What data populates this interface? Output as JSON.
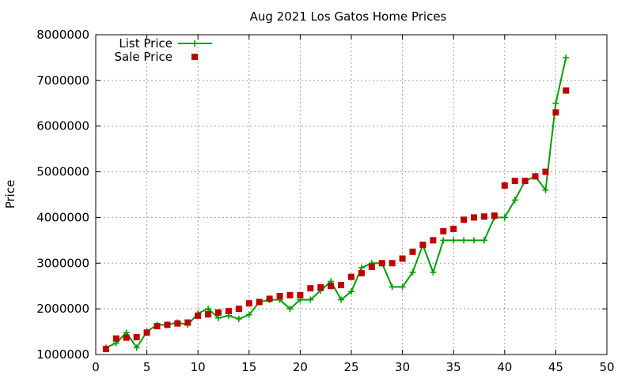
{
  "chart_data": {
    "type": "line",
    "title": "Aug 2021 Los Gatos Home Prices",
    "xlabel": "",
    "ylabel": "Price",
    "xlim": [
      0,
      50
    ],
    "ylim": [
      1000000,
      8000000
    ],
    "xticks": [
      0,
      5,
      10,
      15,
      20,
      25,
      30,
      35,
      40,
      45,
      50
    ],
    "yticks": [
      1000000,
      2000000,
      3000000,
      4000000,
      5000000,
      6000000,
      7000000,
      8000000
    ],
    "xtick_labels": [
      "0",
      "5",
      "10",
      "15",
      "20",
      "25",
      "30",
      "35",
      "40",
      "45",
      "50"
    ],
    "ytick_labels": [
      "1000000",
      "2000000",
      "3000000",
      "4000000",
      "5000000",
      "6000000",
      "7000000",
      "8000000"
    ],
    "grid": true,
    "legend_position": "top-left",
    "series": [
      {
        "name": "List Price",
        "style": "line-plus",
        "color": "#00a000",
        "x": [
          1,
          2,
          3,
          4,
          5,
          6,
          7,
          8,
          9,
          10,
          11,
          12,
          13,
          14,
          15,
          16,
          17,
          18,
          19,
          20,
          21,
          22,
          23,
          24,
          25,
          26,
          27,
          28,
          29,
          30,
          31,
          32,
          33,
          34,
          35,
          36,
          37,
          38,
          39,
          40,
          41,
          42,
          43,
          44,
          45,
          46
        ],
        "y": [
          1150000,
          1250000,
          1480000,
          1150000,
          1500000,
          1650000,
          1650000,
          1700000,
          1650000,
          1900000,
          2000000,
          1800000,
          1850000,
          1780000,
          1870000,
          2150000,
          2200000,
          2200000,
          2000000,
          2200000,
          2200000,
          2400000,
          2600000,
          2200000,
          2380000,
          2900000,
          3000000,
          3000000,
          2480000,
          2480000,
          2800000,
          3400000,
          2800000,
          3500000,
          3500000,
          3500000,
          3500000,
          3500000,
          4000000,
          4000000,
          4380000,
          4800000,
          4900000,
          4600000,
          6500000,
          7500000
        ]
      },
      {
        "name": "Sale Price",
        "style": "square",
        "color": "#c00000",
        "x": [
          1,
          2,
          3,
          4,
          5,
          6,
          7,
          8,
          9,
          10,
          11,
          12,
          13,
          14,
          15,
          16,
          17,
          18,
          19,
          20,
          21,
          22,
          23,
          24,
          25,
          26,
          27,
          28,
          29,
          30,
          31,
          32,
          33,
          34,
          35,
          36,
          37,
          38,
          39,
          40,
          41,
          42,
          43,
          44,
          45,
          46
        ],
        "y": [
          1120000,
          1350000,
          1370000,
          1380000,
          1480000,
          1620000,
          1650000,
          1680000,
          1700000,
          1850000,
          1880000,
          1920000,
          1950000,
          2000000,
          2120000,
          2150000,
          2220000,
          2280000,
          2300000,
          2300000,
          2450000,
          2470000,
          2500000,
          2520000,
          2700000,
          2780000,
          2920000,
          3000000,
          3000000,
          3100000,
          3250000,
          3400000,
          3500000,
          3700000,
          3750000,
          3950000,
          4000000,
          4020000,
          4040000,
          4700000,
          4800000,
          4800000,
          4900000,
          5000000,
          6300000,
          6780000
        ]
      }
    ]
  }
}
